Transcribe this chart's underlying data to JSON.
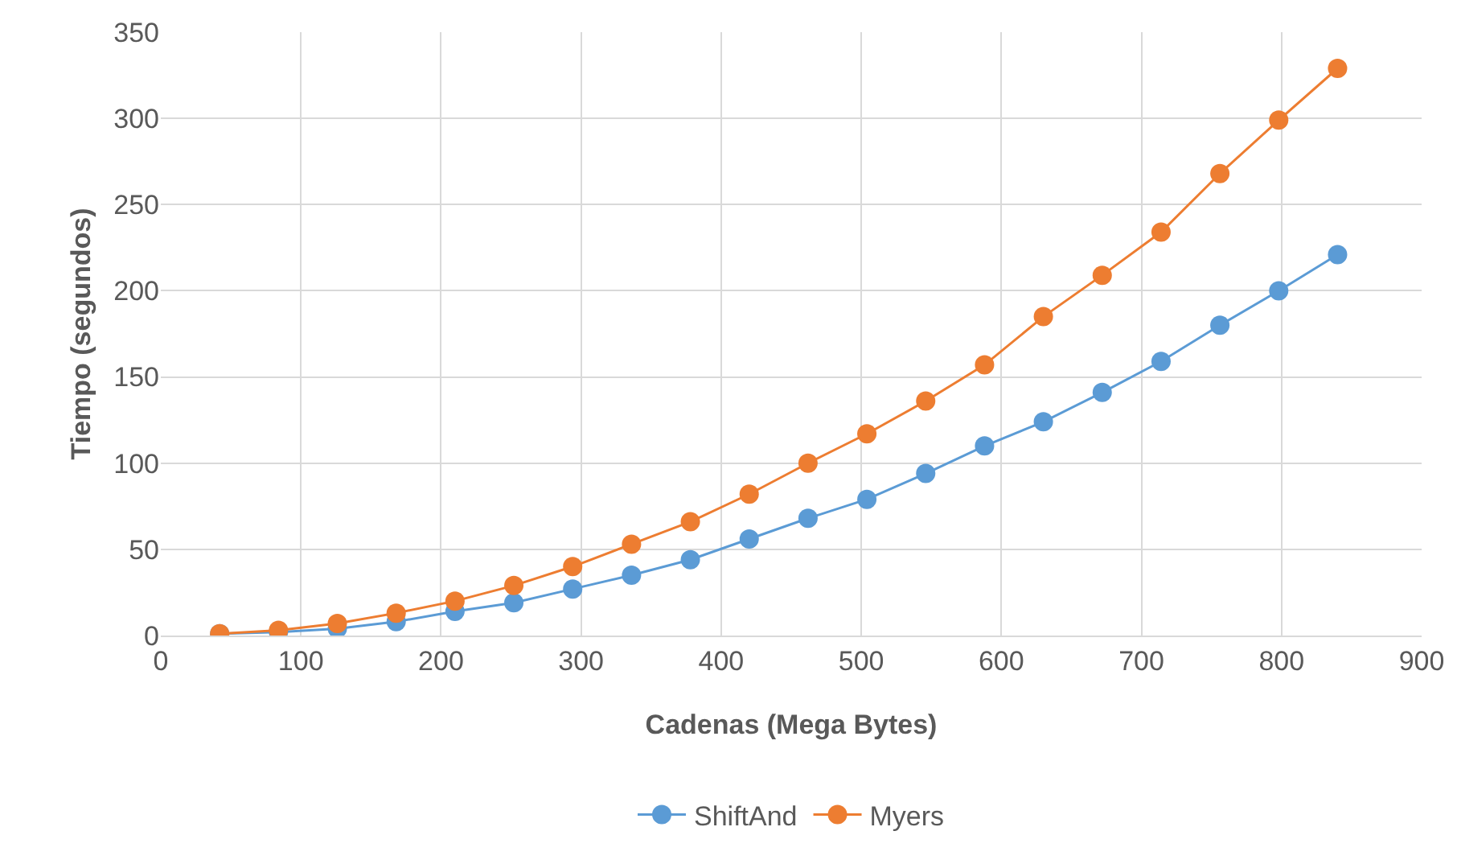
{
  "chart_data": {
    "type": "line",
    "xlabel": "Cadenas (Mega Bytes)",
    "ylabel": "Tiempo (segundos)",
    "x": [
      42,
      84,
      126,
      168,
      210,
      252,
      294,
      336,
      378,
      420,
      462,
      504,
      546,
      588,
      630,
      672,
      714,
      756,
      798,
      840
    ],
    "series": [
      {
        "name": "ShiftAnd",
        "color": "#5b9bd5",
        "values": [
          1,
          2,
          4,
          8,
          14,
          19,
          27,
          35,
          44,
          56,
          68,
          79,
          94,
          110,
          124,
          141,
          159,
          180,
          200,
          221
        ]
      },
      {
        "name": "Myers",
        "color": "#ed7d31",
        "values": [
          1,
          3,
          7,
          13,
          20,
          29,
          40,
          53,
          66,
          82,
          100,
          117,
          136,
          157,
          185,
          209,
          234,
          268,
          299,
          329
        ]
      }
    ],
    "xlim": [
      0,
      900
    ],
    "xticks": [
      0,
      100,
      200,
      300,
      400,
      500,
      600,
      700,
      800,
      900
    ],
    "ylim": [
      0,
      350
    ],
    "yticks": [
      0,
      50,
      100,
      150,
      200,
      250,
      300,
      350
    ],
    "grid": true,
    "legend": "bottom",
    "marker": "circle",
    "line_style": "solid"
  }
}
